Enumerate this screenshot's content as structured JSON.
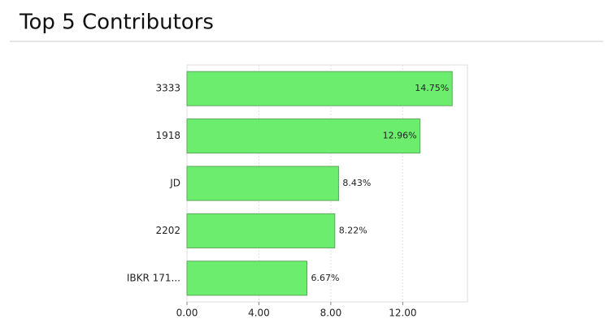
{
  "chart_data": {
    "type": "barh",
    "title": "Top 5 Contributors",
    "categories": [
      "3333",
      "1918",
      "JD",
      "2202",
      "IBKR 171..."
    ],
    "values": [
      14.75,
      12.96,
      8.43,
      8.22,
      6.67
    ],
    "value_labels": [
      "14.75%",
      "12.96%",
      "8.43%",
      "8.22%",
      "6.67%"
    ],
    "color": "#6ded6d",
    "xlim": [
      0,
      15.6
    ],
    "xticks": [
      {
        "value": 0,
        "label": "0.00"
      },
      {
        "value": 4,
        "label": "4.00"
      },
      {
        "value": 8,
        "label": "8.00"
      },
      {
        "value": 12,
        "label": "12.00"
      }
    ],
    "grid": true
  }
}
